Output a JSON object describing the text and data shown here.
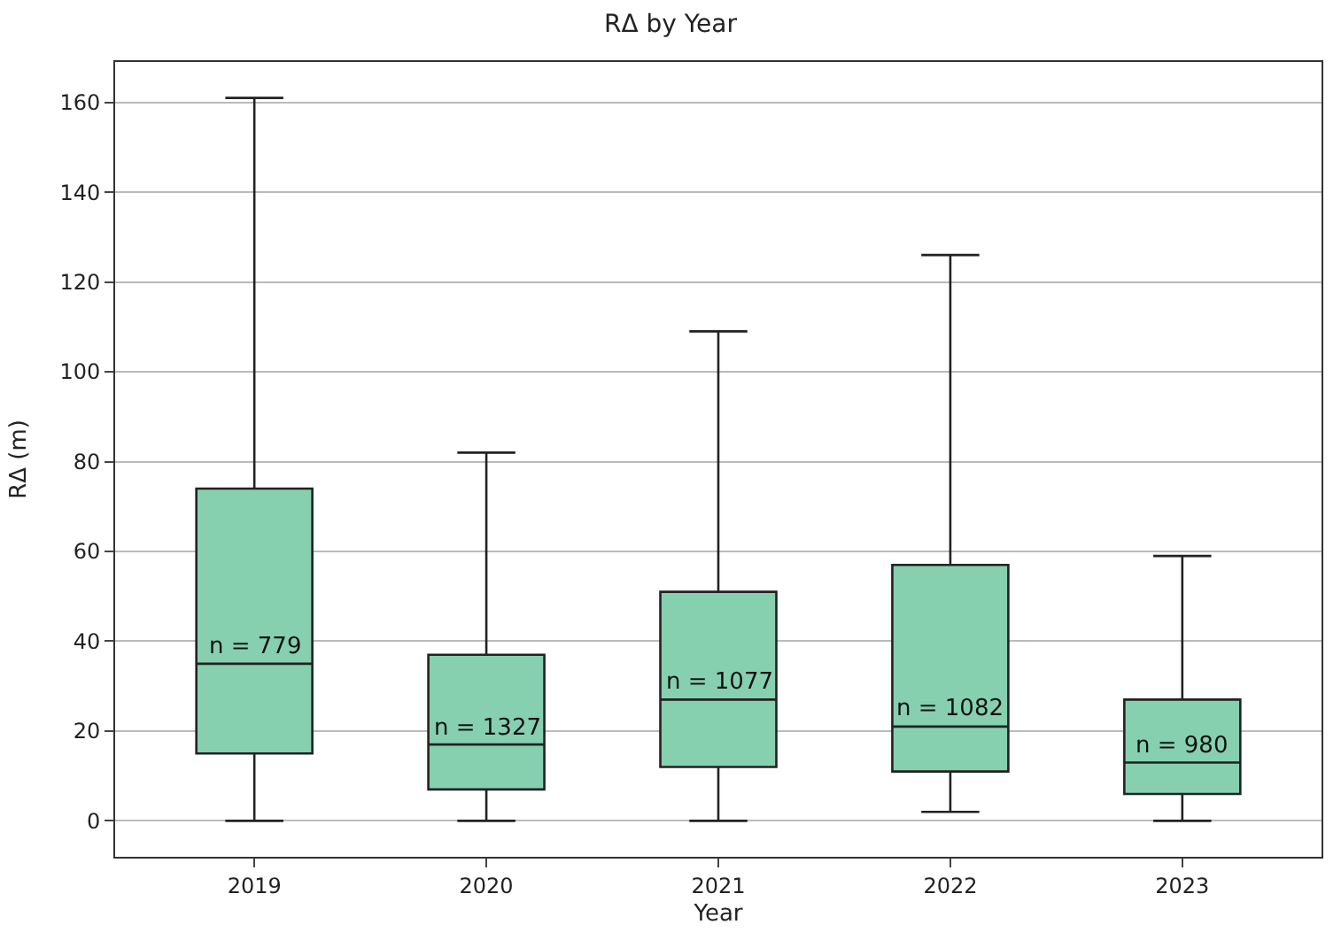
{
  "chart_data": {
    "type": "box",
    "title": "RΔ by Year",
    "xlabel": "Year",
    "ylabel": "RΔ (m)",
    "categories": [
      "2019",
      "2020",
      "2021",
      "2022",
      "2023"
    ],
    "boxes": [
      {
        "low": 0,
        "q1": 15,
        "median": 35,
        "q3": 74,
        "high": 161
      },
      {
        "low": 0,
        "q1": 7,
        "median": 17,
        "q3": 37,
        "high": 82
      },
      {
        "low": 0,
        "q1": 12,
        "median": 27,
        "q3": 51,
        "high": 109
      },
      {
        "low": 2,
        "q1": 11,
        "median": 21,
        "q3": 57,
        "high": 126
      },
      {
        "low": 0,
        "q1": 6,
        "median": 13,
        "q3": 27,
        "high": 59
      }
    ],
    "color": "#86d0b0",
    "ylim": [
      -8,
      169
    ],
    "yticks": [
      0,
      20,
      40,
      60,
      80,
      100,
      120,
      140,
      160
    ],
    "grid": "y",
    "annotations": [
      {
        "text": "n = 779",
        "x": "2019",
        "y": 35
      },
      {
        "text": "n = 1327",
        "x": "2020",
        "y": 17
      },
      {
        "text": "n = 1077",
        "x": "2021",
        "y": 27
      },
      {
        "text": "n = 1082",
        "x": "2022",
        "y": 21
      },
      {
        "text": "n = 980",
        "x": "2023",
        "y": 13
      }
    ]
  }
}
